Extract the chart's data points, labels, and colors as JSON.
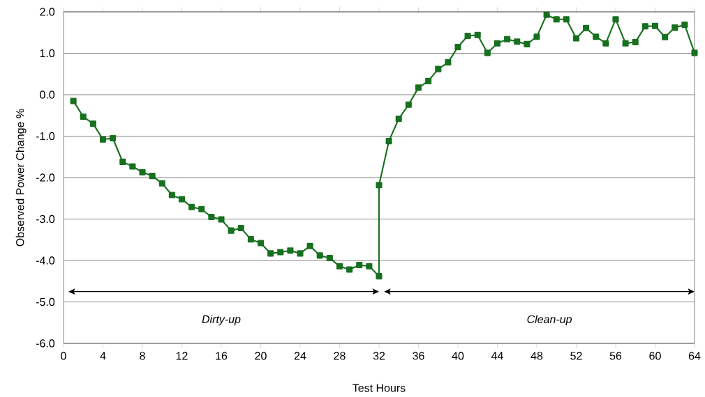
{
  "chart_data": {
    "type": "line",
    "xlabel": "Test Hours",
    "ylabel": "Observed Power Change %",
    "x": [
      1,
      2,
      3,
      4,
      5,
      6,
      7,
      8,
      9,
      10,
      11,
      12,
      13,
      14,
      15,
      16,
      17,
      18,
      19,
      20,
      21,
      22,
      23,
      24,
      25,
      26,
      27,
      28,
      29,
      30,
      31,
      32,
      32,
      33,
      34,
      35,
      36,
      37,
      38,
      39,
      40,
      41,
      42,
      43,
      44,
      45,
      46,
      47,
      48,
      49,
      50,
      51,
      52,
      53,
      54,
      55,
      56,
      57,
      58,
      59,
      60,
      61,
      62,
      63,
      64
    ],
    "series": [
      {
        "color": "#17701f",
        "values": [
          -0.15,
          -0.53,
          -0.7,
          -1.08,
          -1.05,
          -1.62,
          -1.73,
          -1.87,
          -1.96,
          -2.14,
          -2.42,
          -2.52,
          -2.71,
          -2.76,
          -2.95,
          -3.01,
          -3.28,
          -3.22,
          -3.49,
          -3.58,
          -3.83,
          -3.8,
          -3.76,
          -3.83,
          -3.65,
          -3.88,
          -3.94,
          -4.14,
          -4.22,
          -4.11,
          -4.14,
          -4.38,
          -2.18,
          -1.12,
          -0.58,
          -0.24,
          0.17,
          0.33,
          0.62,
          0.78,
          1.15,
          1.42,
          1.44,
          1.01,
          1.24,
          1.34,
          1.28,
          1.22,
          1.4,
          1.93,
          1.82,
          1.82,
          1.36,
          1.61,
          1.4,
          1.24,
          1.82,
          1.24,
          1.27,
          1.65,
          1.66,
          1.39,
          1.62,
          1.69,
          1.01
        ]
      }
    ],
    "xlim": [
      0,
      64
    ],
    "xticks": [
      0,
      4,
      8,
      12,
      16,
      20,
      24,
      28,
      32,
      36,
      40,
      44,
      48,
      52,
      56,
      60,
      64
    ],
    "ylim": [
      -6,
      2
    ],
    "yticks": [
      {
        "value": -6,
        "label": "-6.0"
      },
      {
        "value": -5,
        "label": "-5.0"
      },
      {
        "value": -4,
        "label": "-4.0"
      },
      {
        "value": -3,
        "label": "-3.0"
      },
      {
        "value": -2,
        "label": "-2.0"
      },
      {
        "value": -1,
        "label": "-1.0"
      },
      {
        "value": 0,
        "label": "0.0"
      },
      {
        "value": 1,
        "label": "1.0"
      },
      {
        "value": 2,
        "label": "2.0"
      }
    ],
    "annotations": [
      "*Dirty-up*",
      "*Clean-up*"
    ],
    "grid": "y",
    "legend": false,
    "marker": "square",
    "line_style": "solid"
  }
}
